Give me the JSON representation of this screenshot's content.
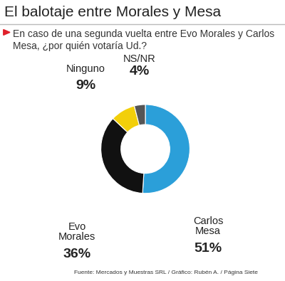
{
  "chart_data": {
    "type": "pie",
    "title": "El balotaje entre Morales y Mesa",
    "subtitle": "En caso de una segunda vuelta entre Evo Morales y Carlos Mesa, ¿por quién votaría Ud.?",
    "categories": [
      "Carlos Mesa",
      "Evo Morales",
      "Ninguno",
      "NS/NR"
    ],
    "values": [
      51,
      36,
      9,
      4
    ],
    "value_labels": [
      "51%",
      "36%",
      "9%",
      "4%"
    ],
    "colors": [
      "#2b9fd9",
      "#111111",
      "#f2cf0a",
      "#555555"
    ],
    "data_labels": true,
    "source": "Fuente: Mercados y Muestras SRL / Gráfico: Rubén A. / Página Siete"
  }
}
